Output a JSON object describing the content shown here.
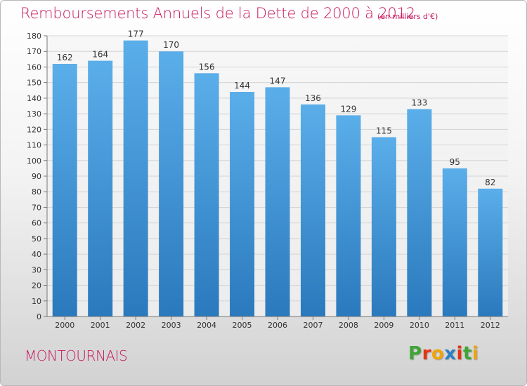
{
  "chart_data": {
    "type": "bar",
    "title": "Remboursements Annuels de la Dette de 2000 à 2012",
    "subtitle": "(en milliers d'€)",
    "categories": [
      "2000",
      "2001",
      "2002",
      "2003",
      "2004",
      "2005",
      "2006",
      "2007",
      "2008",
      "2009",
      "2010",
      "2011",
      "2012"
    ],
    "values": [
      162,
      164,
      177,
      170,
      156,
      144,
      147,
      136,
      129,
      115,
      133,
      95,
      82
    ],
    "ylim": [
      0,
      180
    ],
    "yticks": [
      0,
      10,
      20,
      30,
      40,
      50,
      60,
      70,
      80,
      90,
      100,
      110,
      120,
      130,
      140,
      150,
      160,
      170,
      180
    ],
    "grid": true,
    "bar_color_top": "#5aaee9",
    "bar_color_bottom": "#2a79bd"
  },
  "footer": {
    "commune": "MONTOURNAIS",
    "logo_letters": [
      {
        "ch": "P",
        "color": "#3fa535"
      },
      {
        "ch": "r",
        "color": "#e63312"
      },
      {
        "ch": "o",
        "color": "#f0a30a"
      },
      {
        "ch": "x",
        "color": "#2b7fc4"
      },
      {
        "ch": "i",
        "color": "#e63312"
      },
      {
        "ch": "t",
        "color": "#3fa535"
      },
      {
        "ch": "i",
        "color": "#f0a30a"
      }
    ]
  }
}
